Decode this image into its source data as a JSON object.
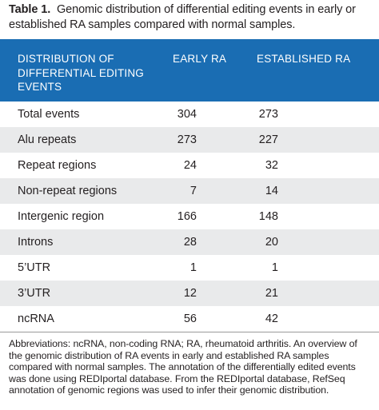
{
  "caption": {
    "label": "Table 1.",
    "text": "Genomic distribution of differential editing events in early or established RA samples compared with normal samples."
  },
  "header": {
    "col1": "DISTRIBUTION OF DIFFERENTIAL EDITING EVENTS",
    "col2": "EARLY RA",
    "col3": "ESTABLISHED RA"
  },
  "rows": [
    {
      "name": "Total events",
      "early": "304",
      "established": "273"
    },
    {
      "name": "Alu repeats",
      "early": "273",
      "established": "227"
    },
    {
      "name": "Repeat regions",
      "early": "24",
      "established": "32"
    },
    {
      "name": "Non-repeat regions",
      "early": "7",
      "established": "14"
    },
    {
      "name": "Intergenic region",
      "early": "166",
      "established": "148"
    },
    {
      "name": "Introns",
      "early": "28",
      "established": "20"
    },
    {
      "name": "5’UTR",
      "early": "1",
      "established": "1"
    },
    {
      "name": "3’UTR",
      "early": "12",
      "established": "21"
    },
    {
      "name": "ncRNA",
      "early": "56",
      "established": "42"
    }
  ],
  "footnote": "Abbreviations: ncRNA, non-coding RNA; RA, rheumatoid arthritis. An overview of the genomic distribution of RA events in early and established RA samples compared with normal samples. The annotation of the differentially edited events was done using REDIportal database. From the REDIportal database, RefSeq annotation of genomic regions was used to infer their genomic distribution."
}
